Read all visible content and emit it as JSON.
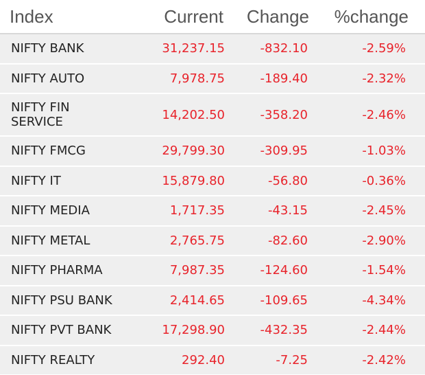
{
  "table": {
    "headers": {
      "index": "Index",
      "current": "Current",
      "change": "Change",
      "pct_change": "%change"
    },
    "rows": [
      {
        "index": "NIFTY BANK",
        "current": "31,237.15",
        "change": "-832.10",
        "pct_change": "-2.59%"
      },
      {
        "index": "NIFTY AUTO",
        "current": "7,978.75",
        "change": "-189.40",
        "pct_change": "-2.32%"
      },
      {
        "index": "NIFTY FIN SERVICE",
        "current": "14,202.50",
        "change": "-358.20",
        "pct_change": "-2.46%"
      },
      {
        "index": "NIFTY FMCG",
        "current": "29,799.30",
        "change": "-309.95",
        "pct_change": "-1.03%"
      },
      {
        "index": "NIFTY IT",
        "current": "15,879.80",
        "change": "-56.80",
        "pct_change": "-0.36%"
      },
      {
        "index": "NIFTY MEDIA",
        "current": "1,717.35",
        "change": "-43.15",
        "pct_change": "-2.45%"
      },
      {
        "index": "NIFTY METAL",
        "current": "2,765.75",
        "change": "-82.60",
        "pct_change": "-2.90%"
      },
      {
        "index": "NIFTY PHARMA",
        "current": "7,987.35",
        "change": "-124.60",
        "pct_change": "-1.54%"
      },
      {
        "index": "NIFTY PSU BANK",
        "current": "2,414.65",
        "change": "-109.65",
        "pct_change": "-4.34%"
      },
      {
        "index": "NIFTY PVT BANK",
        "current": "17,298.90",
        "change": "-432.35",
        "pct_change": "-2.44%"
      },
      {
        "index": "NIFTY REALTY",
        "current": "292.40",
        "change": "-7.25",
        "pct_change": "-2.42%"
      }
    ]
  },
  "colors": {
    "negative": "#e8232b",
    "row_background": "#efefef",
    "header_text": "#555555"
  }
}
